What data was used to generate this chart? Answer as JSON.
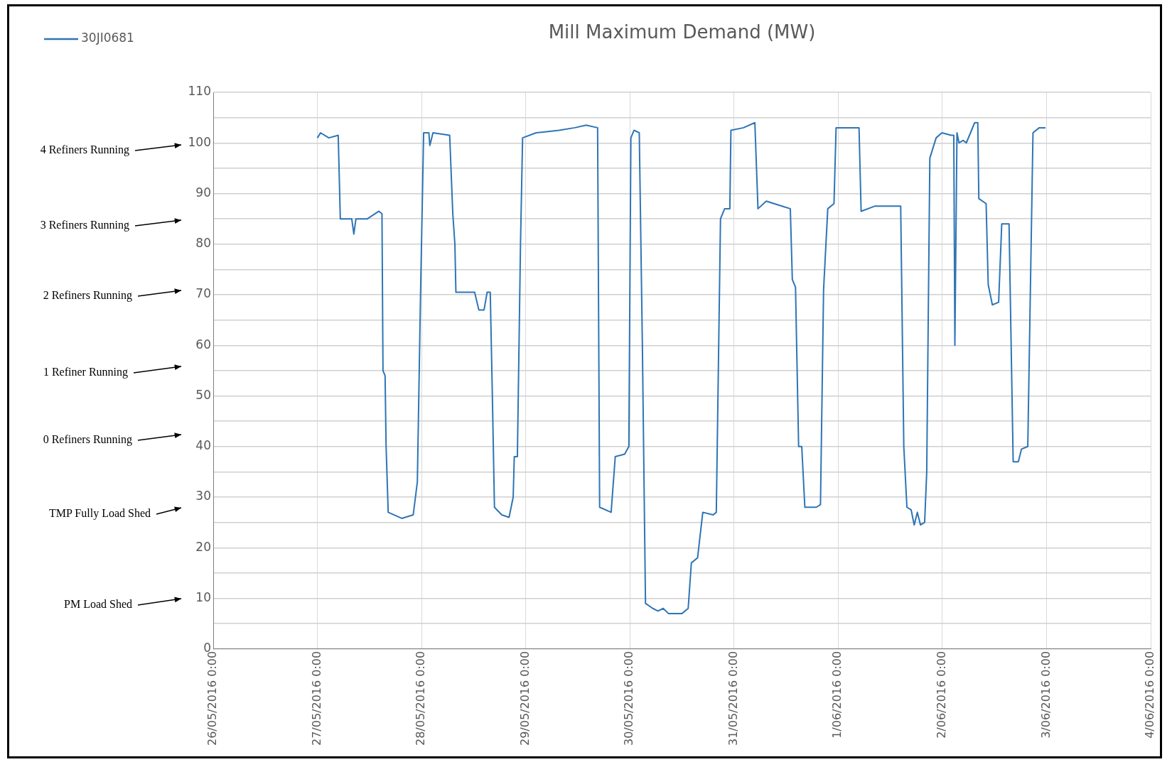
{
  "chart_data": {
    "type": "line",
    "title": "Mill Maximum Demand (MW)",
    "legend": "top left",
    "grid": true,
    "xlim": [
      "2016-05-26T00:00",
      "2016-06-04T00:00"
    ],
    "xticks": [
      {
        "value": "2016-05-26T00:00",
        "label": "26/05/2016 0:00"
      },
      {
        "value": "2016-05-27T00:00",
        "label": "27/05/2016 0:00"
      },
      {
        "value": "2016-05-28T00:00",
        "label": "28/05/2016 0:00"
      },
      {
        "value": "2016-05-29T00:00",
        "label": "29/05/2016 0:00"
      },
      {
        "value": "2016-05-30T00:00",
        "label": "30/05/2016 0:00"
      },
      {
        "value": "2016-05-31T00:00",
        "label": "31/05/2016 0:00"
      },
      {
        "value": "2016-06-01T00:00",
        "label": "1/06/2016 0:00"
      },
      {
        "value": "2016-06-02T00:00",
        "label": "2/06/2016 0:00"
      },
      {
        "value": "2016-06-03T00:00",
        "label": "3/06/2016 0:00"
      },
      {
        "value": "2016-06-04T00:00",
        "label": "4/06/2016 0:00"
      }
    ],
    "ylim": [
      0,
      110
    ],
    "yticks": [
      0,
      {
        "value": 5,
        "label": null
      },
      10,
      {
        "value": 15,
        "label": null
      },
      20,
      {
        "value": 25,
        "label": null
      },
      30,
      {
        "value": 35,
        "label": null
      },
      40,
      {
        "value": 45,
        "label": null
      },
      50,
      {
        "value": 55,
        "label": null
      },
      60,
      {
        "value": 65,
        "label": null
      },
      70,
      {
        "value": 75,
        "label": null
      },
      80,
      {
        "value": 85,
        "label": null
      },
      90,
      {
        "value": 95,
        "label": null
      },
      100,
      {
        "value": 105,
        "label": null
      },
      110
    ],
    "annotations": [
      "4 Refiners Running",
      "3 Refiners Running",
      "2 Refiners Running",
      "1 Refiner Running",
      "0 Refiners Running",
      "TMP Fully Load Shed",
      "PM Load Shed"
    ],
    "series": [
      {
        "name": "30JI0681",
        "color": "#2e75b6",
        "x": [
          "2016-05-27T00:00",
          "2016-05-27T00:43",
          "2016-05-27T02:38",
          "2016-05-27T04:48",
          "2016-05-27T05:17",
          "2016-05-27T07:55",
          "2016-05-27T08:24",
          "2016-05-27T08:53",
          "2016-05-27T11:31",
          "2016-05-27T14:10",
          "2016-05-27T14:53",
          "2016-05-27T15:07",
          "2016-05-27T15:36",
          "2016-05-27T15:50",
          "2016-05-27T16:19",
          "2016-05-27T19:26",
          "2016-05-27T22:05",
          "2016-05-27T23:02",
          "2016-05-27T23:46",
          "2016-05-28T00:29",
          "2016-05-28T01:41",
          "2016-05-28T01:55",
          "2016-05-28T02:38",
          "2016-05-28T06:29",
          "2016-05-28T07:12",
          "2016-05-28T07:41",
          "2016-05-28T07:55",
          "2016-05-28T12:14",
          "2016-05-28T13:12",
          "2016-05-28T14:24",
          "2016-05-28T15:07",
          "2016-05-28T15:50",
          "2016-05-28T16:19",
          "2016-05-28T16:48",
          "2016-05-28T18:29",
          "2016-05-28T20:10",
          "2016-05-28T21:07",
          "2016-05-28T21:22",
          "2016-05-28T22:05",
          "2016-05-28T22:48",
          "2016-05-28T23:17",
          "2016-05-29T02:24",
          "2016-05-29T07:41",
          "2016-05-29T11:17",
          "2016-05-29T13:55",
          "2016-05-29T16:34",
          "2016-05-29T17:02",
          "2016-05-29T19:41",
          "2016-05-29T20:38",
          "2016-05-29T22:48",
          "2016-05-29T23:46",
          "2016-05-30T00:14",
          "2016-05-30T00:58",
          "2016-05-30T02:10",
          "2016-05-30T02:53",
          "2016-05-30T03:36",
          "2016-05-30T05:17",
          "2016-05-30T06:29",
          "2016-05-30T07:41",
          "2016-05-30T08:53",
          "2016-05-30T12:00",
          "2016-05-30T13:26",
          "2016-05-30T14:10",
          "2016-05-30T15:36",
          "2016-05-30T16:48",
          "2016-05-30T19:12",
          "2016-05-30T19:55",
          "2016-05-30T20:53",
          "2016-05-30T21:50",
          "2016-05-30T23:02",
          "2016-05-30T23:17",
          "2016-05-31T02:10",
          "2016-05-31T04:48",
          "2016-05-31T05:31",
          "2016-05-31T07:26",
          "2016-05-31T11:02",
          "2016-05-31T12:58",
          "2016-05-31T13:26",
          "2016-05-31T14:10",
          "2016-05-31T14:53",
          "2016-05-31T15:36",
          "2016-05-31T16:19",
          "2016-05-31T18:58",
          "2016-05-31T19:55",
          "2016-05-31T20:38",
          "2016-05-31T21:36",
          "2016-05-31T23:02",
          "2016-05-31T23:31",
          "2016-06-01T04:48",
          "2016-06-01T05:17",
          "2016-06-01T08:24",
          "2016-06-01T11:46",
          "2016-06-01T14:24",
          "2016-06-01T15:07",
          "2016-06-01T15:50",
          "2016-06-01T16:48",
          "2016-06-01T17:31",
          "2016-06-01T18:14",
          "2016-06-01T18:58",
          "2016-06-01T19:55",
          "2016-06-01T20:24",
          "2016-06-01T21:07",
          "2016-06-01T22:34",
          "2016-06-01T23:54",
          "2016-06-02T02:02",
          "2016-06-02T02:38",
          "2016-06-02T02:53",
          "2016-06-02T03:22",
          "2016-06-02T03:50",
          "2016-06-02T04:48",
          "2016-06-02T05:31",
          "2016-06-02T06:29",
          "2016-06-02T07:26",
          "2016-06-02T08:10",
          "2016-06-02T08:24",
          "2016-06-02T10:05",
          "2016-06-02T10:34",
          "2016-06-02T11:31",
          "2016-06-02T12:58",
          "2016-06-02T13:41",
          "2016-06-02T15:22",
          "2016-06-02T16:19",
          "2016-06-02T17:31",
          "2016-06-02T18:14",
          "2016-06-02T19:41",
          "2016-06-02T20:53",
          "2016-06-02T22:19",
          "2016-06-02T23:46"
        ],
        "values": [
          101,
          102,
          101,
          101.5,
          85,
          85,
          82,
          85,
          85,
          86.5,
          86,
          55,
          54,
          40,
          27,
          25.8,
          26.5,
          33,
          70,
          102,
          102,
          99.5,
          102,
          101.5,
          86,
          80,
          70.5,
          70.5,
          67,
          67,
          70.5,
          70.5,
          50,
          28,
          26.5,
          26,
          30,
          38,
          38,
          80,
          101,
          102,
          102.5,
          103,
          103.5,
          103,
          28,
          27,
          38,
          38.5,
          40,
          101,
          102.5,
          102,
          60,
          9,
          8,
          7.5,
          8,
          7,
          7,
          8,
          17,
          18,
          27,
          26.5,
          27,
          85,
          87,
          87,
          102.5,
          103,
          104,
          87,
          88.5,
          87.5,
          87,
          73,
          71.5,
          40,
          40,
          28,
          28,
          28.5,
          71,
          87,
          88,
          103,
          103,
          86.5,
          87.5,
          87.5,
          87.5,
          40,
          28,
          27.5,
          24.5,
          27,
          24.5,
          25,
          35,
          97,
          101,
          102,
          101.5,
          101.5,
          60,
          102,
          100,
          100.5,
          100,
          102,
          104,
          104,
          89,
          88,
          72,
          68,
          68.5,
          84,
          84,
          37,
          37,
          39.5,
          40,
          102,
          103,
          103
        ]
      }
    ]
  }
}
